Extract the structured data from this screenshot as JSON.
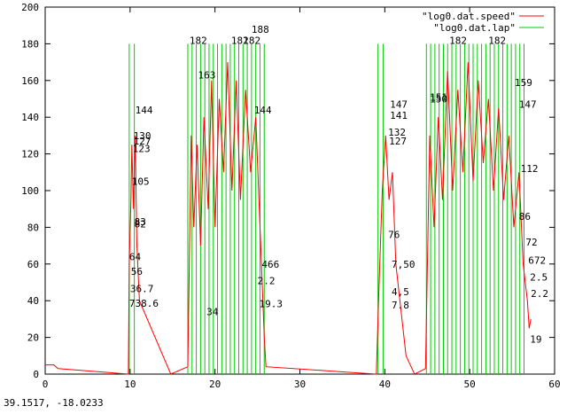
{
  "chart_data": {
    "type": "line",
    "title": "",
    "xlabel": "",
    "ylabel": "",
    "xlim": [
      0,
      60
    ],
    "ylim": [
      0,
      200
    ],
    "x_ticks": [
      0,
      10,
      20,
      30,
      40,
      50,
      60
    ],
    "y_ticks": [
      0,
      20,
      40,
      60,
      80,
      100,
      120,
      140,
      160,
      180,
      200
    ],
    "grid": false,
    "legend_position": "top-right",
    "series": [
      {
        "name": "\"log0.dat.speed\"",
        "color": "#ff0000",
        "points": [
          [
            0.0,
            5
          ],
          [
            1.0,
            5
          ],
          [
            1.5,
            3
          ],
          [
            9.8,
            0
          ],
          [
            9.9,
            60
          ],
          [
            10.1,
            95
          ],
          [
            10.2,
            125
          ],
          [
            10.4,
            90
          ],
          [
            10.6,
            130
          ],
          [
            10.8,
            70
          ],
          [
            11.1,
            40
          ],
          [
            14.8,
            0
          ],
          [
            16.8,
            4
          ],
          [
            17.2,
            130
          ],
          [
            17.5,
            80
          ],
          [
            17.9,
            125
          ],
          [
            18.3,
            70
          ],
          [
            18.7,
            140
          ],
          [
            19.2,
            90
          ],
          [
            19.6,
            160
          ],
          [
            20.0,
            80
          ],
          [
            20.5,
            150
          ],
          [
            21.0,
            110
          ],
          [
            21.5,
            170
          ],
          [
            22.0,
            100
          ],
          [
            22.5,
            160
          ],
          [
            23.0,
            95
          ],
          [
            23.6,
            155
          ],
          [
            24.2,
            110
          ],
          [
            24.8,
            140
          ],
          [
            25.3,
            80
          ],
          [
            25.8,
            20
          ],
          [
            26.0,
            4
          ],
          [
            39.0,
            0
          ],
          [
            39.3,
            45
          ],
          [
            39.7,
            100
          ],
          [
            40.1,
            130
          ],
          [
            40.5,
            95
          ],
          [
            40.9,
            110
          ],
          [
            41.3,
            60
          ],
          [
            42.5,
            10
          ],
          [
            43.5,
            0
          ],
          [
            44.8,
            3
          ],
          [
            45.3,
            130
          ],
          [
            45.8,
            80
          ],
          [
            46.3,
            140
          ],
          [
            46.8,
            95
          ],
          [
            47.4,
            165
          ],
          [
            48.0,
            100
          ],
          [
            48.6,
            155
          ],
          [
            49.2,
            110
          ],
          [
            49.8,
            170
          ],
          [
            50.4,
            105
          ],
          [
            51.0,
            160
          ],
          [
            51.6,
            115
          ],
          [
            52.2,
            150
          ],
          [
            52.8,
            100
          ],
          [
            53.4,
            145
          ],
          [
            54.0,
            95
          ],
          [
            54.6,
            130
          ],
          [
            55.2,
            80
          ],
          [
            55.8,
            110
          ],
          [
            56.3,
            60
          ],
          [
            56.8,
            40
          ],
          [
            57.0,
            25
          ],
          [
            57.2,
            30
          ]
        ]
      },
      {
        "name": "\"log0.dat.lap\"",
        "color": "#00cc00",
        "vertical_spikes_x": [
          9.9,
          10.5,
          16.8,
          17.3,
          17.8,
          18.3,
          18.8,
          19.3,
          19.8,
          20.3,
          20.8,
          21.3,
          21.8,
          22.3,
          22.8,
          23.3,
          23.8,
          24.3,
          24.8,
          25.3,
          25.8,
          39.2,
          39.8,
          44.9,
          45.4,
          45.9,
          46.4,
          46.9,
          47.4,
          47.9,
          48.4,
          48.9,
          49.4,
          49.9,
          50.4,
          50.9,
          51.4,
          51.9,
          52.4,
          52.9,
          53.4,
          53.9,
          54.4,
          54.9,
          55.4,
          55.9,
          56.4
        ],
        "spike_range": [
          0,
          180
        ]
      }
    ],
    "annotations": [
      {
        "x": 10.6,
        "y": 144,
        "text": "144"
      },
      {
        "x": 10.4,
        "y": 130,
        "text": "130"
      },
      {
        "x": 10.4,
        "y": 127,
        "text": "127"
      },
      {
        "x": 10.3,
        "y": 123,
        "text": "123"
      },
      {
        "x": 10.2,
        "y": 105,
        "text": "105"
      },
      {
        "x": 10.5,
        "y": 83,
        "text": "83"
      },
      {
        "x": 10.5,
        "y": 82,
        "text": "82"
      },
      {
        "x": 9.9,
        "y": 64,
        "text": "64"
      },
      {
        "x": 10.1,
        "y": 56,
        "text": "56"
      },
      {
        "x": 10.0,
        "y": 46.7,
        "text": "36.7"
      },
      {
        "x": 9.9,
        "y": 38.6,
        "text": "738.6"
      },
      {
        "x": 17.0,
        "y": 182,
        "text": "182"
      },
      {
        "x": 18.0,
        "y": 163,
        "text": "163"
      },
      {
        "x": 21.9,
        "y": 182,
        "text": "182"
      },
      {
        "x": 23.3,
        "y": 182,
        "text": "182"
      },
      {
        "x": 24.3,
        "y": 188,
        "text": "188"
      },
      {
        "x": 24.6,
        "y": 144,
        "text": "144"
      },
      {
        "x": 25.5,
        "y": 60,
        "text": "466"
      },
      {
        "x": 25.0,
        "y": 51,
        "text": "2.2"
      },
      {
        "x": 25.2,
        "y": 38.3,
        "text": "19.3"
      },
      {
        "x": 19.0,
        "y": 34,
        "text": "34"
      },
      {
        "x": 40.6,
        "y": 147,
        "text": "147"
      },
      {
        "x": 40.6,
        "y": 141,
        "text": "141"
      },
      {
        "x": 40.4,
        "y": 132,
        "text": "132"
      },
      {
        "x": 40.5,
        "y": 127,
        "text": "127"
      },
      {
        "x": 40.4,
        "y": 76,
        "text": "76"
      },
      {
        "x": 40.8,
        "y": 60,
        "text": "7,50"
      },
      {
        "x": 40.8,
        "y": 45,
        "text": "4,5"
      },
      {
        "x": 40.8,
        "y": 37.8,
        "text": "7.8"
      },
      {
        "x": 45.3,
        "y": 151,
        "text": "151"
      },
      {
        "x": 45.3,
        "y": 150,
        "text": "150"
      },
      {
        "x": 47.6,
        "y": 182,
        "text": "182"
      },
      {
        "x": 52.2,
        "y": 182,
        "text": "182"
      },
      {
        "x": 55.3,
        "y": 159,
        "text": "159"
      },
      {
        "x": 55.8,
        "y": 147,
        "text": "147"
      },
      {
        "x": 56.0,
        "y": 112,
        "text": "112"
      },
      {
        "x": 55.8,
        "y": 86,
        "text": "86"
      },
      {
        "x": 56.6,
        "y": 72,
        "text": "72"
      },
      {
        "x": 56.9,
        "y": 62,
        "text": "672"
      },
      {
        "x": 57.1,
        "y": 53,
        "text": "2.5"
      },
      {
        "x": 57.2,
        "y": 44,
        "text": "2.2"
      },
      {
        "x": 57.1,
        "y": 19,
        "text": "19"
      }
    ]
  },
  "status": {
    "coordinates": "39.1517, -18.0233"
  }
}
